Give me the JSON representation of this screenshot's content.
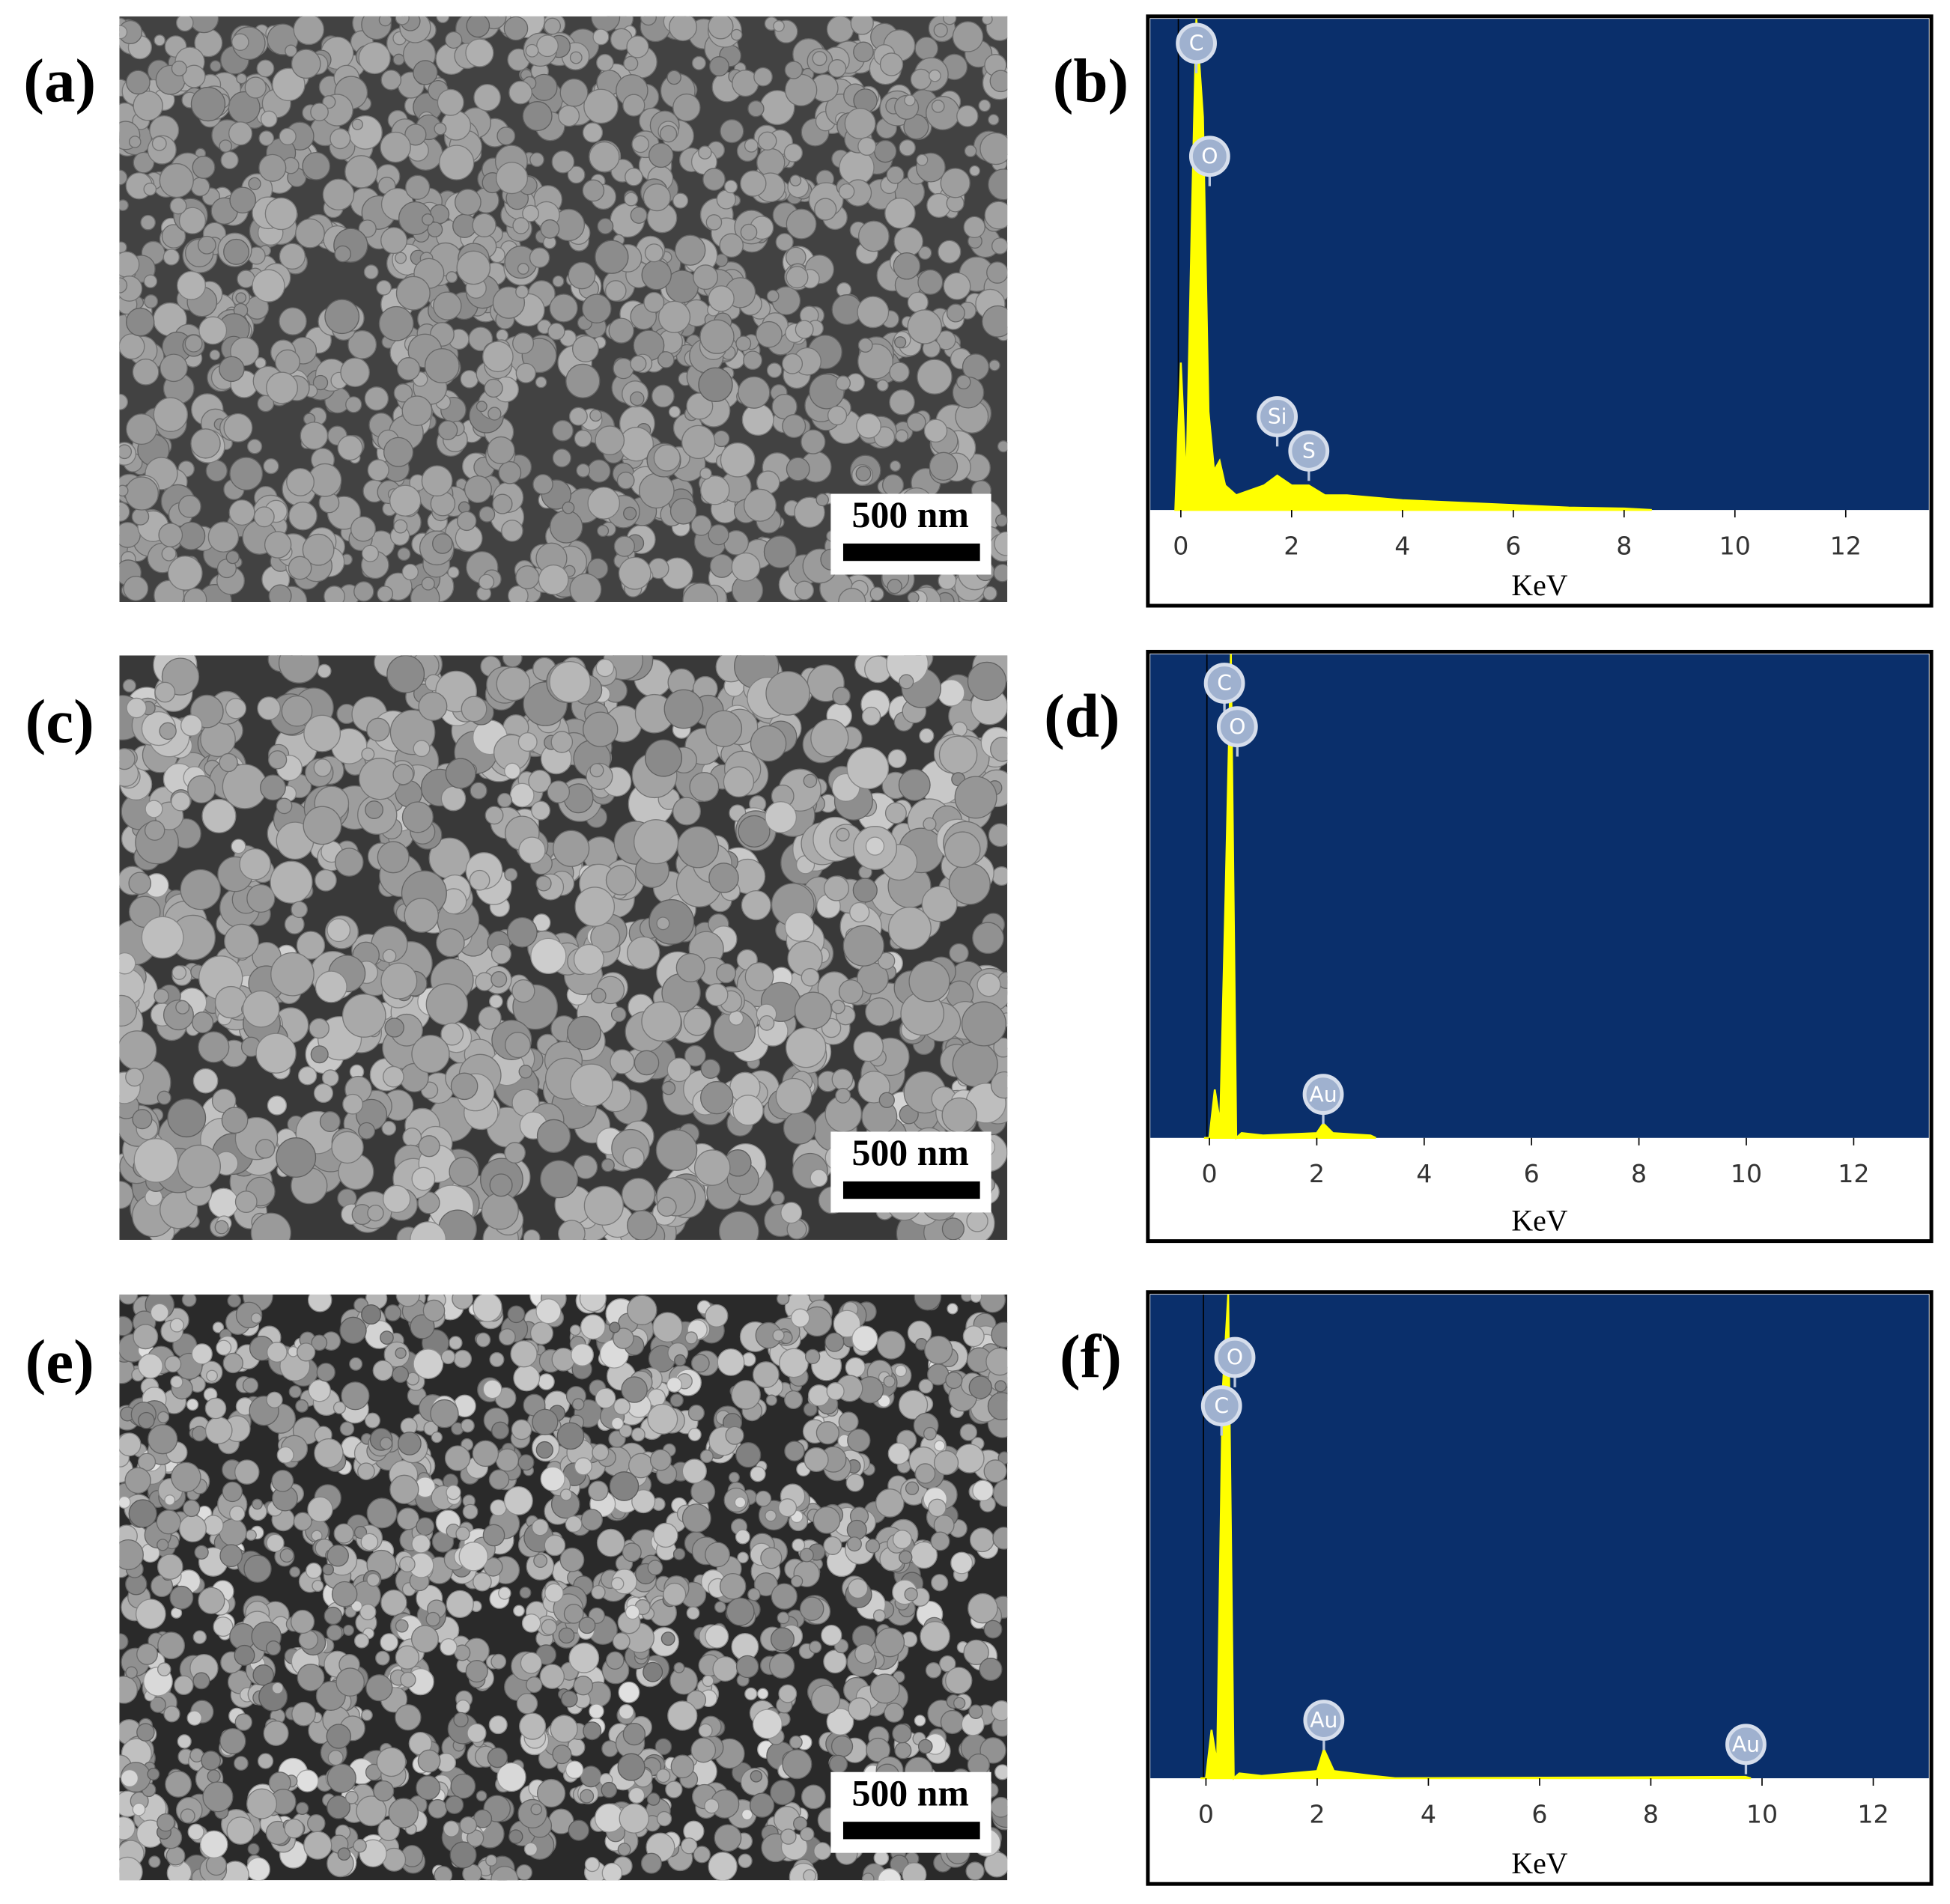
{
  "panels": [
    {
      "label": "(a)",
      "scale_bar": "500 nm"
    },
    {
      "label": "(c)",
      "scale_bar": "500 nm"
    },
    {
      "label": "(e)",
      "scale_bar": "500 nm"
    }
  ],
  "chart_data": [
    {
      "type": "area",
      "label": "(b)",
      "xlabel": "KeV",
      "xlim": [
        -0.55,
        13.5
      ],
      "xticks": [
        0,
        2,
        4,
        6,
        8,
        10,
        12
      ],
      "ylim": [
        0,
        100
      ],
      "color": "#ffff00",
      "background": "#0a2f6b",
      "x": [
        -0.1,
        0.0,
        0.1,
        0.2,
        0.28,
        0.4,
        0.5,
        0.6,
        0.7,
        0.8,
        1.0,
        1.5,
        1.74,
        2.0,
        2.31,
        2.6,
        3,
        4,
        5,
        6,
        7,
        8,
        8.5
      ],
      "values": [
        0,
        30,
        5,
        60,
        100,
        80,
        20,
        8,
        10,
        5,
        3,
        5,
        7,
        5,
        5,
        3,
        3,
        2,
        1.5,
        1,
        0.5,
        0.3,
        0
      ],
      "annotations": [
        {
          "text": "C",
          "x": 0.28
        },
        {
          "text": "O",
          "x": 0.52
        },
        {
          "text": "Si",
          "x": 1.74
        },
        {
          "text": "S",
          "x": 2.31
        }
      ]
    },
    {
      "type": "area",
      "label": "(d)",
      "xlabel": "KeV",
      "xlim": [
        -1.1,
        13.4
      ],
      "xticks": [
        0,
        2,
        4,
        6,
        8,
        10,
        12
      ],
      "ylim": [
        0,
        100
      ],
      "color": "#ffff00",
      "background": "#0a2f6b",
      "x": [
        -0.1,
        0.0,
        0.1,
        0.2,
        0.3,
        0.4,
        0.5,
        0.6,
        1.0,
        2.0,
        2.12,
        2.3,
        3.0,
        3.1
      ],
      "values": [
        0,
        0,
        10,
        3,
        50,
        100,
        0,
        1,
        0.5,
        1,
        3,
        1,
        0.5,
        0
      ],
      "annotations": [
        {
          "text": "C",
          "x": 0.28
        },
        {
          "text": "O",
          "x": 0.52
        },
        {
          "text": "Au",
          "x": 2.12
        }
      ]
    },
    {
      "type": "area",
      "label": "(f)",
      "xlabel": "KeV",
      "xlim": [
        -1.0,
        13.0
      ],
      "xticks": [
        0,
        2,
        4,
        6,
        8,
        10,
        12
      ],
      "ylim": [
        0,
        100
      ],
      "color": "#ffff00",
      "background": "#0a2f6b",
      "x": [
        -0.1,
        0.0,
        0.1,
        0.2,
        0.3,
        0.4,
        0.5,
        0.6,
        1.0,
        2.0,
        2.12,
        2.3,
        3.0,
        3.4,
        9.7,
        9.8
      ],
      "values": [
        0,
        0,
        10,
        3,
        80,
        100,
        0,
        1,
        0.5,
        1.5,
        6,
        1.5,
        0.5,
        0,
        0.3,
        0
      ],
      "annotations": [
        {
          "text": "O",
          "x": 0.52
        },
        {
          "text": "C",
          "x": 0.28
        },
        {
          "text": "Au",
          "x": 2.12
        },
        {
          "text": "Au",
          "x": 9.71
        }
      ]
    }
  ]
}
